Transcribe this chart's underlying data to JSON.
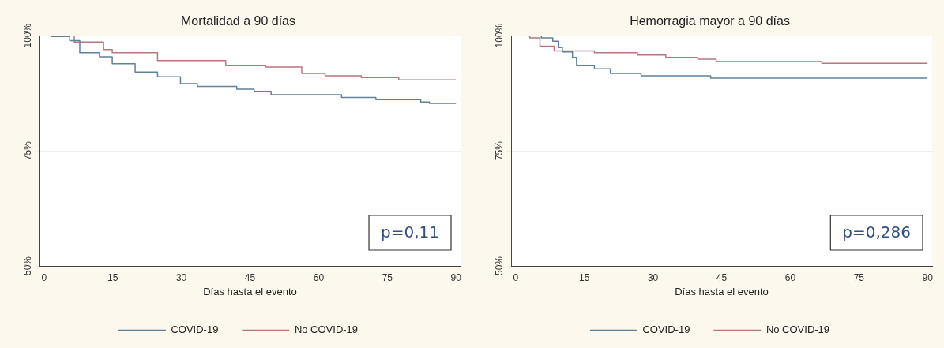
{
  "chart_data": [
    {
      "type": "step",
      "title": "Mortalidad a 90 días",
      "xlabel": "Días hasta el evento",
      "annotations": [
        "p=0,11"
      ],
      "xlim": [
        -1,
        91
      ],
      "xticks": [
        0,
        15,
        30,
        45,
        60,
        75,
        90
      ],
      "ylim": [
        50,
        100
      ],
      "yticks": [
        {
          "value": 50,
          "label": "50%"
        },
        {
          "value": 75,
          "label": "75%"
        },
        {
          "value": 100,
          "label": "100%"
        }
      ],
      "grid": "y",
      "legend": "bottom",
      "marker": "none",
      "line_style": "solid",
      "series": [
        {
          "name": "COVID-19",
          "color": "#5f8199",
          "x": [
            0,
            1.6,
            5.6,
            7.8,
            12.1,
            14.9,
            19.9,
            24.8,
            29.8,
            33.5,
            42.1,
            45.9,
            49.6,
            65,
            72.5,
            82.3,
            84.2,
            90
          ],
          "values": [
            100,
            99.8,
            98.9,
            96.3,
            95.4,
            93.9,
            92.1,
            91.1,
            89.6,
            89,
            88.4,
            87.9,
            87.2,
            86.6,
            86.1,
            85.6,
            85.3,
            85.3
          ]
        },
        {
          "name": "No COVID-19",
          "color": "#b8777e",
          "x": [
            0,
            6.6,
            13,
            14.9,
            24.8,
            39.7,
            48.4,
            56.3,
            61.4,
            69.3,
            77.5,
            90
          ],
          "values": [
            100,
            98.6,
            97,
            96.3,
            94.6,
            93.5,
            93.2,
            91.8,
            91.3,
            90.9,
            90.4,
            90.4
          ]
        }
      ]
    },
    {
      "type": "step",
      "title": "Hemorragia mayor a 90 días",
      "xlabel": "Días hasta el evento",
      "annotations": [
        "p=0,286"
      ],
      "xlim": [
        -1,
        91
      ],
      "xticks": [
        0,
        15,
        30,
        45,
        60,
        75,
        90
      ],
      "ylim": [
        50,
        100
      ],
      "yticks": [
        {
          "value": 50,
          "label": "50%"
        },
        {
          "value": 75,
          "label": "75%"
        },
        {
          "value": 100,
          "label": "100%"
        }
      ],
      "grid": "y",
      "legend": "bottom",
      "marker": "none",
      "line_style": "solid",
      "series": [
        {
          "name": "COVID-19",
          "color": "#5f8199",
          "x": [
            0,
            5.6,
            8.1,
            9.3,
            10.2,
            12.4,
            13.3,
            17.2,
            20.7,
            27.4,
            42.6,
            90
          ],
          "values": [
            100,
            99.5,
            98.8,
            97.4,
            96.5,
            95.3,
            93.5,
            92.8,
            91.8,
            91.3,
            90.8,
            90.8
          ]
        },
        {
          "name": "No COVID-19",
          "color": "#b8777e",
          "x": [
            0,
            3.1,
            5.3,
            8.4,
            17.2,
            26.6,
            32.8,
            39.8,
            43.8,
            66.9,
            90
          ],
          "values": [
            100,
            99.5,
            97.7,
            96.7,
            96.3,
            95.8,
            95.3,
            94.9,
            94.4,
            94,
            94
          ]
        }
      ]
    }
  ]
}
